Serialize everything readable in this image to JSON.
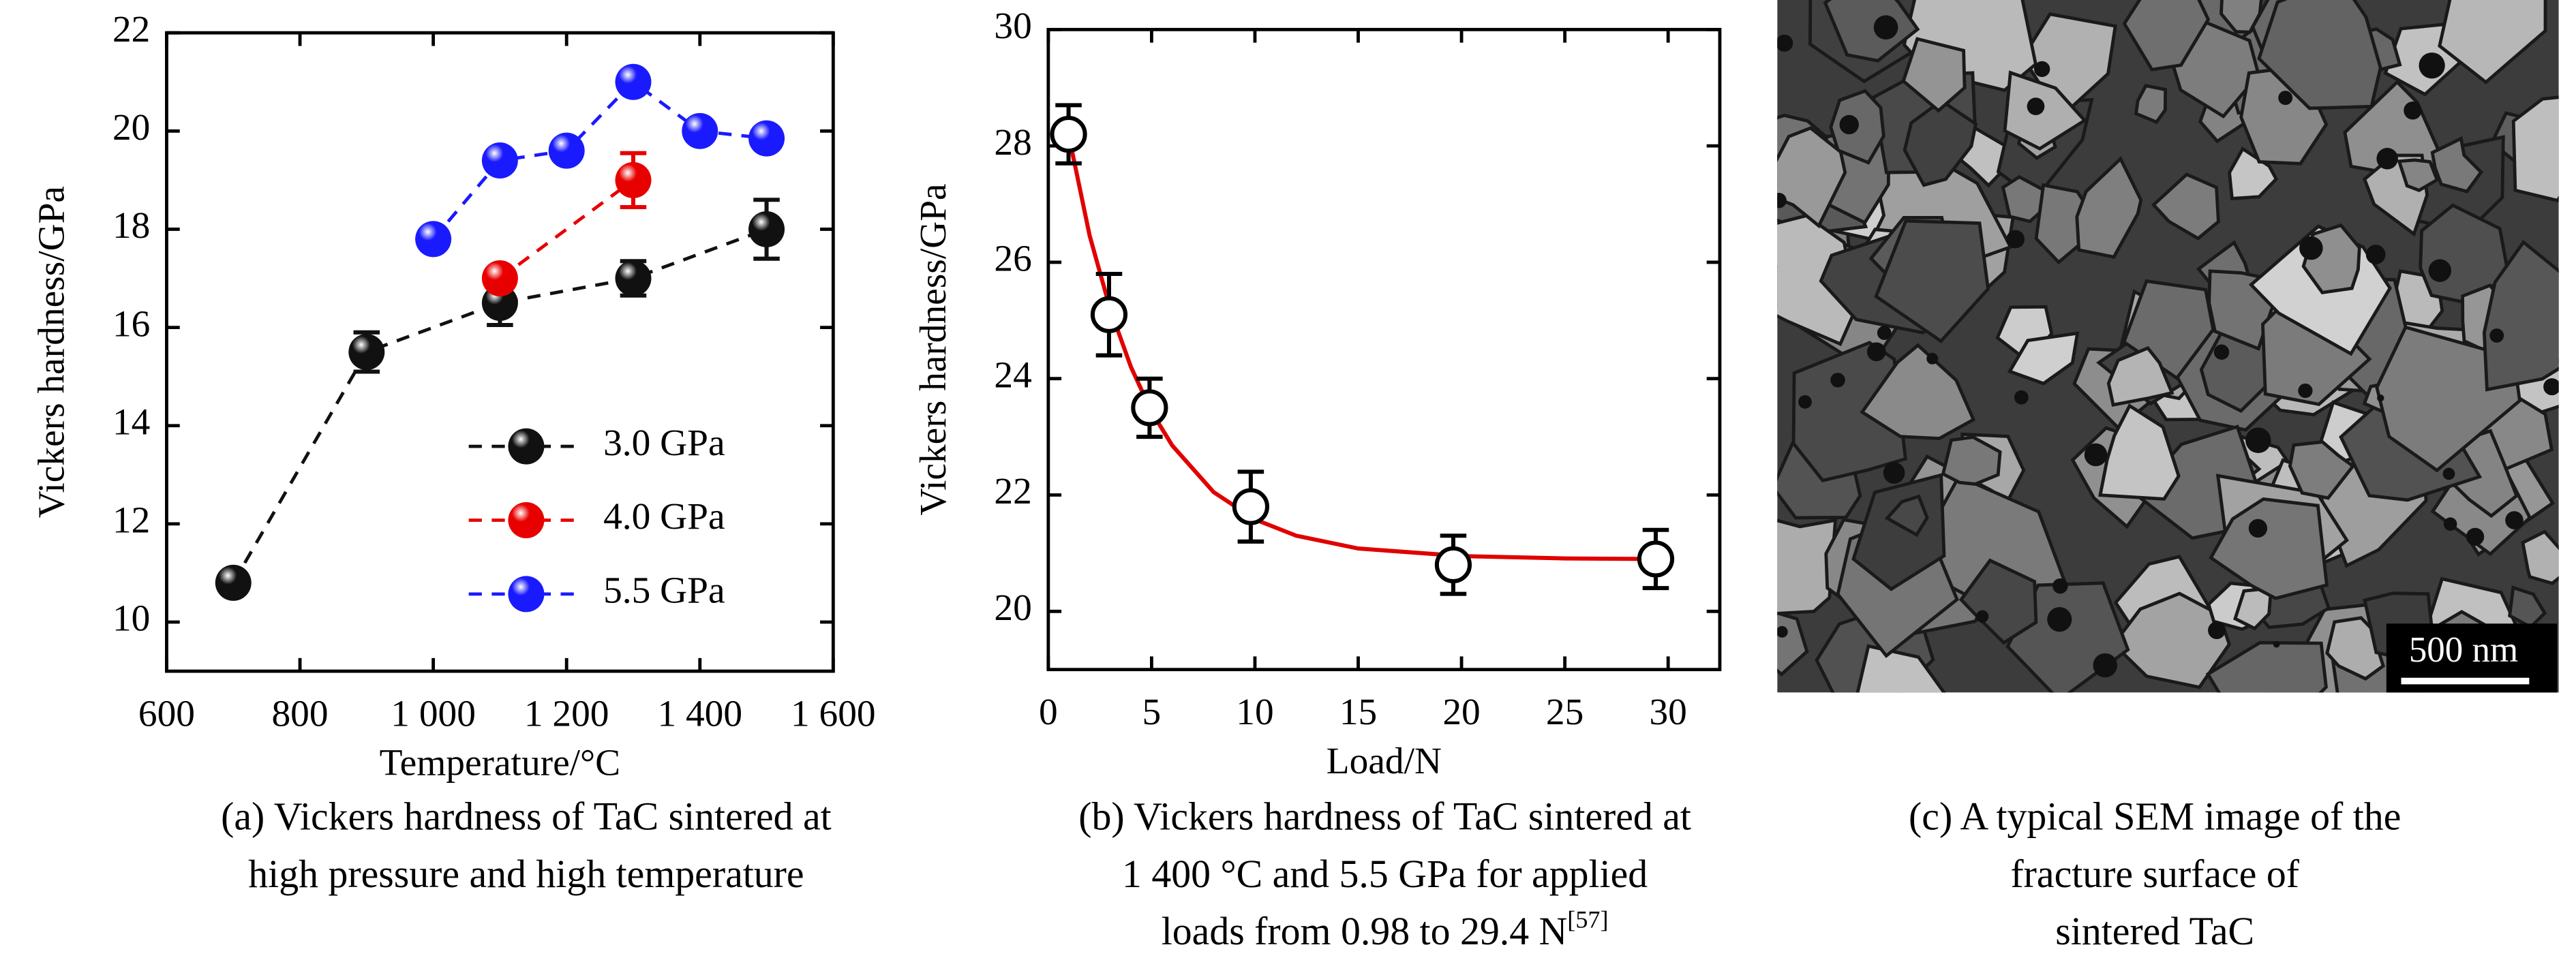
{
  "chart_data": [
    {
      "type": "line",
      "x_label": "Temperature/°C",
      "y_label": "Vickers hardness/GPa",
      "xlim": [
        600,
        1600
      ],
      "xticks": [
        600,
        800,
        {
          "value": 1000,
          "label": "1 000"
        },
        {
          "value": 1200,
          "label": "1 200"
        },
        {
          "value": 1400,
          "label": "1 400"
        },
        {
          "value": 1600,
          "label": "1 600"
        }
      ],
      "ylim": [
        9,
        22
      ],
      "yticks": [
        10,
        12,
        14,
        16,
        18,
        20,
        22
      ],
      "legend": "lower right",
      "series": [
        {
          "name": "3.0 GPa",
          "color": "#111111",
          "x": [
            700,
            900,
            1100,
            1300,
            1500
          ],
          "values": [
            10.8,
            15.5,
            16.5,
            17.0,
            18.0
          ],
          "errors": [
            0,
            0.4,
            0.45,
            0.35,
            0.6
          ]
        },
        {
          "name": "4.0 GPa",
          "color": "#e80000",
          "x": [
            1100,
            1300
          ],
          "values": [
            17.0,
            19.0
          ],
          "errors": [
            0,
            0.55
          ]
        },
        {
          "name": "5.5 GPa",
          "color": "#1a1aff",
          "x": [
            1000,
            1100,
            1200,
            1300,
            1400,
            1500
          ],
          "values": [
            17.8,
            19.4,
            19.6,
            21.0,
            20.0,
            19.85
          ]
        }
      ],
      "caption": [
        "(a) Vickers hardness of TaC sintered at",
        "high pressure and high temperature"
      ]
    },
    {
      "type": "scatter",
      "x_label": "Load/N",
      "y_label": "Vickers hardness/GPa",
      "xlim": [
        0,
        32.5
      ],
      "xticks": [
        0,
        5,
        10,
        15,
        20,
        25,
        30
      ],
      "ylim": [
        19,
        30
      ],
      "yticks": [
        20,
        22,
        24,
        26,
        28,
        30
      ],
      "color": "#000000",
      "x": [
        0.98,
        2.94,
        4.9,
        9.8,
        19.6,
        29.4
      ],
      "values": [
        28.2,
        25.1,
        23.5,
        21.8,
        20.8,
        20.9
      ],
      "errors": [
        0.5,
        0.7,
        0.5,
        0.6,
        0.5,
        0.5
      ],
      "fit": {
        "color": "#e00000",
        "x": [
          0.98,
          2,
          3,
          4,
          5,
          6,
          8,
          10,
          12,
          15,
          20,
          25,
          29.4
        ],
        "values": [
          28.2,
          26.46,
          25.19,
          24.2,
          23.43,
          22.85,
          22.05,
          21.58,
          21.3,
          21.08,
          20.95,
          20.91,
          20.9
        ]
      },
      "caption": [
        "(b) Vickers hardness of TaC sintered at",
        "1 400 °C and 5.5 GPa for applied",
        "loads from 0.98 to 29.4 N"
      ],
      "caption_ref": "[57]"
    }
  ],
  "image": {
    "scale_bar": "500 nm",
    "caption": [
      "(c) A typical SEM image of the",
      "fracture surface of",
      "sintered TaC"
    ]
  }
}
